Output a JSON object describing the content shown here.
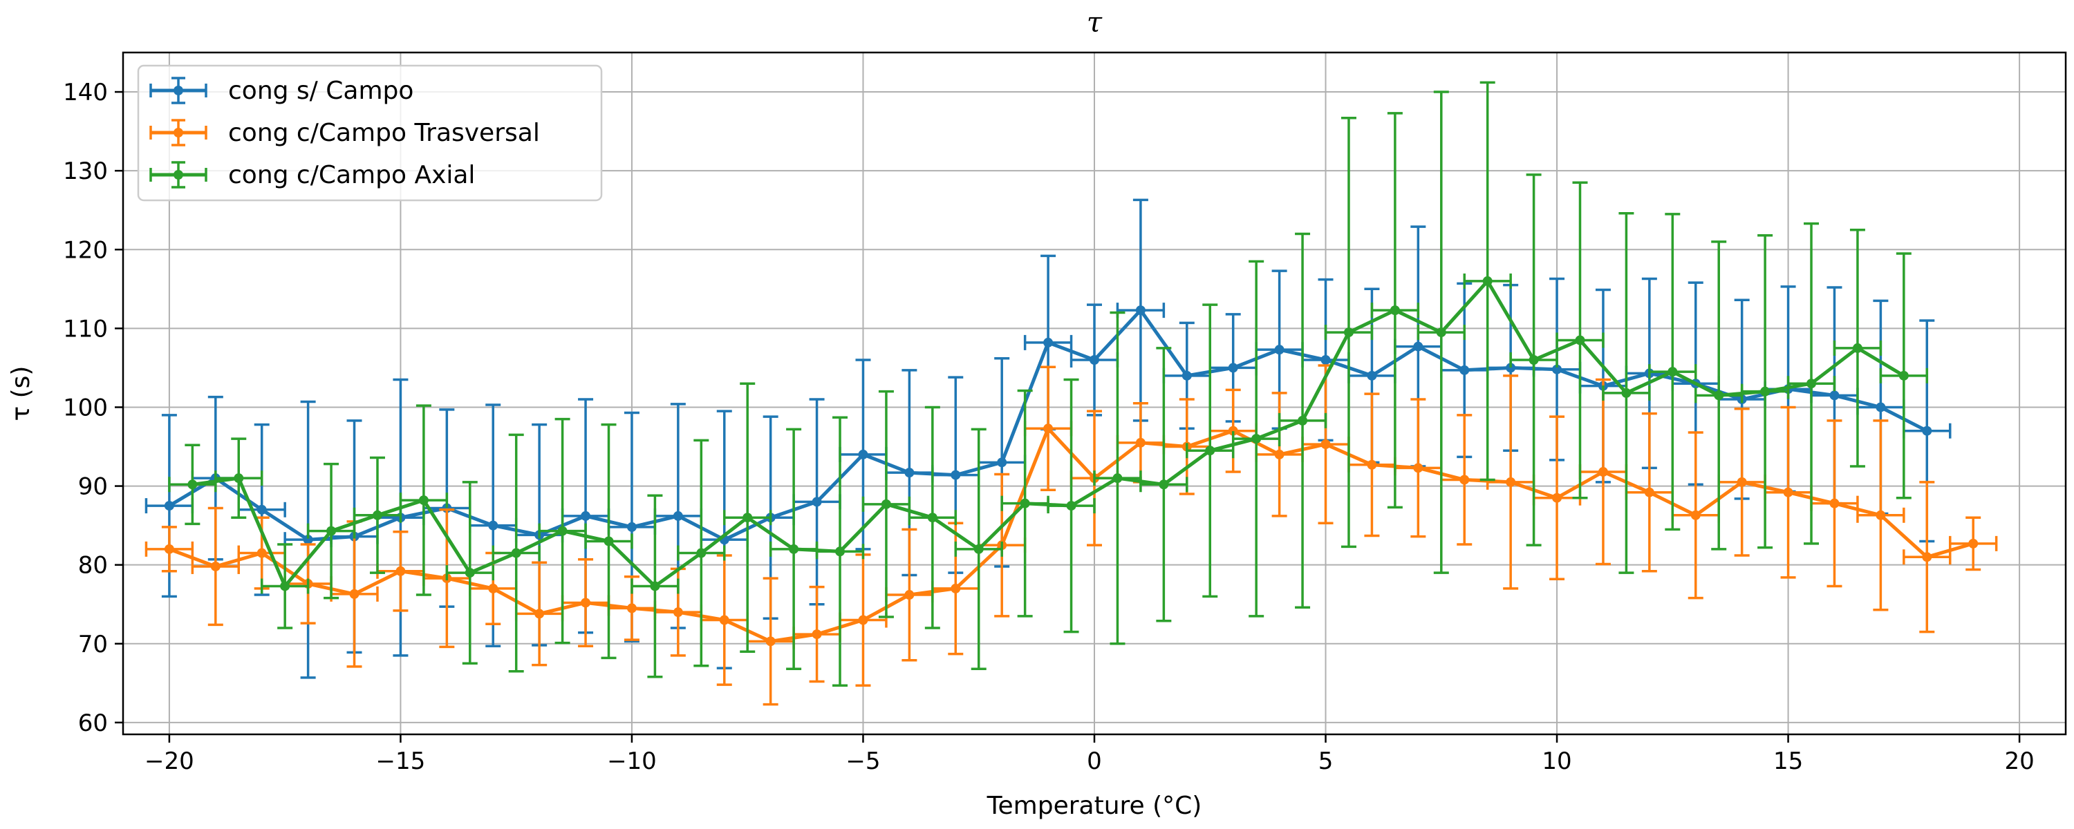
{
  "chart_data": {
    "type": "line",
    "title": "τ",
    "xlabel": "Temperature (°C)",
    "ylabel": "τ (s)",
    "xlim": [
      -21,
      21
    ],
    "ylim": [
      58.5,
      145
    ],
    "xticks": [
      -20,
      -15,
      -10,
      -5,
      0,
      5,
      10,
      15,
      20
    ],
    "xtick_labels": [
      "−20",
      "−15",
      "−10",
      "−5",
      "0",
      "5",
      "10",
      "15",
      "20"
    ],
    "yticks": [
      60,
      70,
      80,
      90,
      100,
      110,
      120,
      130,
      140
    ],
    "ytick_labels": [
      "60",
      "70",
      "80",
      "90",
      "100",
      "110",
      "120",
      "130",
      "140"
    ],
    "grid": true,
    "legend_position": "top-left",
    "series": [
      {
        "name": "cong s/ Campo",
        "color": "#1f77b4",
        "points": [
          {
            "x": -20.0,
            "y": 87.5,
            "yerr": 11.5,
            "xerr": 0.5
          },
          {
            "x": -19.0,
            "y": 91.0,
            "yerr": 10.3,
            "xerr": 0.5
          },
          {
            "x": -18.0,
            "y": 87.0,
            "yerr": 10.8,
            "xerr": 0.5
          },
          {
            "x": -17.0,
            "y": 83.2,
            "yerr": 17.5,
            "xerr": 0.5
          },
          {
            "x": -16.0,
            "y": 83.6,
            "yerr": 14.7,
            "xerr": 0.5
          },
          {
            "x": -15.0,
            "y": 86.0,
            "yerr": 17.5,
            "xerr": 0.5
          },
          {
            "x": -14.0,
            "y": 87.2,
            "yerr": 12.5,
            "xerr": 0.5
          },
          {
            "x": -13.0,
            "y": 85.0,
            "yerr": 15.3,
            "xerr": 0.5
          },
          {
            "x": -12.0,
            "y": 83.8,
            "yerr": 14.0,
            "xerr": 0.5
          },
          {
            "x": -11.0,
            "y": 86.2,
            "yerr": 14.8,
            "xerr": 0.5
          },
          {
            "x": -10.0,
            "y": 84.8,
            "yerr": 14.5,
            "xerr": 0.5
          },
          {
            "x": -9.0,
            "y": 86.2,
            "yerr": 14.2,
            "xerr": 0.5
          },
          {
            "x": -8.0,
            "y": 83.2,
            "yerr": 16.3,
            "xerr": 0.5
          },
          {
            "x": -7.0,
            "y": 86.0,
            "yerr": 12.8,
            "xerr": 0.5
          },
          {
            "x": -6.0,
            "y": 88.0,
            "yerr": 13.0,
            "xerr": 0.5
          },
          {
            "x": -5.0,
            "y": 94.0,
            "yerr": 12.0,
            "xerr": 0.5
          },
          {
            "x": -4.0,
            "y": 91.7,
            "yerr": 13.0,
            "xerr": 0.5
          },
          {
            "x": -3.0,
            "y": 91.4,
            "yerr": 12.4,
            "xerr": 0.5
          },
          {
            "x": -2.0,
            "y": 93.0,
            "yerr": 13.2,
            "xerr": 0.5
          },
          {
            "x": -1.0,
            "y": 108.2,
            "yerr": 11.0,
            "xerr": 0.5
          },
          {
            "x": 0.0,
            "y": 106.0,
            "yerr": 7.0,
            "xerr": 0.5
          },
          {
            "x": 1.0,
            "y": 112.3,
            "yerr": 14.0,
            "xerr": 0.5
          },
          {
            "x": 2.0,
            "y": 104.0,
            "yerr": 6.7,
            "xerr": 0.5
          },
          {
            "x": 3.0,
            "y": 105.0,
            "yerr": 6.8,
            "xerr": 0.5
          },
          {
            "x": 4.0,
            "y": 107.3,
            "yerr": 10.0,
            "xerr": 0.5
          },
          {
            "x": 5.0,
            "y": 106.0,
            "yerr": 10.2,
            "xerr": 0.5
          },
          {
            "x": 6.0,
            "y": 104.0,
            "yerr": 11.0,
            "xerr": 0.5
          },
          {
            "x": 7.0,
            "y": 107.7,
            "yerr": 15.2,
            "xerr": 0.5
          },
          {
            "x": 8.0,
            "y": 104.7,
            "yerr": 11.0,
            "xerr": 0.5
          },
          {
            "x": 9.0,
            "y": 105.0,
            "yerr": 10.5,
            "xerr": 0.5
          },
          {
            "x": 10.0,
            "y": 104.8,
            "yerr": 11.5,
            "xerr": 0.5
          },
          {
            "x": 11.0,
            "y": 102.7,
            "yerr": 12.2,
            "xerr": 0.5
          },
          {
            "x": 12.0,
            "y": 104.3,
            "yerr": 12.0,
            "xerr": 0.5
          },
          {
            "x": 13.0,
            "y": 103.0,
            "yerr": 12.8,
            "xerr": 0.5
          },
          {
            "x": 14.0,
            "y": 101.0,
            "yerr": 12.6,
            "xerr": 0.5
          },
          {
            "x": 15.0,
            "y": 102.3,
            "yerr": 13.0,
            "xerr": 0.5
          },
          {
            "x": 16.0,
            "y": 101.5,
            "yerr": 13.7,
            "xerr": 0.5
          },
          {
            "x": 17.0,
            "y": 100.0,
            "yerr": 13.5,
            "xerr": 0.5
          },
          {
            "x": 18.0,
            "y": 97.0,
            "yerr": 14.0,
            "xerr": 0.5
          }
        ]
      },
      {
        "name": "cong c/Campo Trasversal",
        "color": "#ff7f0e",
        "points": [
          {
            "x": -20.0,
            "y": 82.0,
            "yerr": 2.8,
            "xerr": 0.5
          },
          {
            "x": -19.0,
            "y": 79.8,
            "yerr": 7.4,
            "xerr": 0.5
          },
          {
            "x": -18.0,
            "y": 81.5,
            "yerr": 4.5,
            "xerr": 0.5
          },
          {
            "x": -17.0,
            "y": 77.6,
            "yerr": 5.0,
            "xerr": 0.5
          },
          {
            "x": -16.0,
            "y": 76.3,
            "yerr": 9.2,
            "xerr": 0.5
          },
          {
            "x": -15.0,
            "y": 79.2,
            "yerr": 5.0,
            "xerr": 0.5
          },
          {
            "x": -14.0,
            "y": 78.3,
            "yerr": 8.7,
            "xerr": 0.5
          },
          {
            "x": -13.0,
            "y": 77.0,
            "yerr": 4.5,
            "xerr": 0.5
          },
          {
            "x": -12.0,
            "y": 73.8,
            "yerr": 6.5,
            "xerr": 0.5
          },
          {
            "x": -11.0,
            "y": 75.2,
            "yerr": 5.5,
            "xerr": 0.5
          },
          {
            "x": -10.0,
            "y": 74.5,
            "yerr": 4.0,
            "xerr": 0.5
          },
          {
            "x": -9.0,
            "y": 74.0,
            "yerr": 5.5,
            "xerr": 0.5
          },
          {
            "x": -8.0,
            "y": 73.0,
            "yerr": 8.2,
            "xerr": 0.5
          },
          {
            "x": -7.0,
            "y": 70.3,
            "yerr": 8.0,
            "xerr": 0.5
          },
          {
            "x": -6.0,
            "y": 71.2,
            "yerr": 6.0,
            "xerr": 0.5
          },
          {
            "x": -5.0,
            "y": 73.0,
            "yerr": 8.3,
            "xerr": 0.5
          },
          {
            "x": -4.0,
            "y": 76.2,
            "yerr": 8.3,
            "xerr": 0.5
          },
          {
            "x": -3.0,
            "y": 77.0,
            "yerr": 8.3,
            "xerr": 0.5
          },
          {
            "x": -2.0,
            "y": 82.5,
            "yerr": 9.0,
            "xerr": 0.5
          },
          {
            "x": -1.0,
            "y": 97.3,
            "yerr": 7.8,
            "xerr": 0.5
          },
          {
            "x": 0.0,
            "y": 91.0,
            "yerr": 8.5,
            "xerr": 0.5
          },
          {
            "x": 1.0,
            "y": 95.5,
            "yerr": 5.0,
            "xerr": 0.5
          },
          {
            "x": 2.0,
            "y": 95.0,
            "yerr": 6.0,
            "xerr": 0.5
          },
          {
            "x": 3.0,
            "y": 97.0,
            "yerr": 5.2,
            "xerr": 0.5
          },
          {
            "x": 4.0,
            "y": 94.0,
            "yerr": 7.8,
            "xerr": 0.5
          },
          {
            "x": 5.0,
            "y": 95.3,
            "yerr": 10.0,
            "xerr": 0.5
          },
          {
            "x": 6.0,
            "y": 92.7,
            "yerr": 9.0,
            "xerr": 0.5
          },
          {
            "x": 7.0,
            "y": 92.3,
            "yerr": 8.7,
            "xerr": 0.5
          },
          {
            "x": 8.0,
            "y": 90.8,
            "yerr": 8.2,
            "xerr": 0.5
          },
          {
            "x": 9.0,
            "y": 90.5,
            "yerr": 13.5,
            "xerr": 0.5
          },
          {
            "x": 10.0,
            "y": 88.5,
            "yerr": 10.3,
            "xerr": 0.5
          },
          {
            "x": 11.0,
            "y": 91.8,
            "yerr": 11.7,
            "xerr": 0.5
          },
          {
            "x": 12.0,
            "y": 89.2,
            "yerr": 10.0,
            "xerr": 0.5
          },
          {
            "x": 13.0,
            "y": 86.3,
            "yerr": 10.5,
            "xerr": 0.5
          },
          {
            "x": 14.0,
            "y": 90.5,
            "yerr": 9.3,
            "xerr": 0.5
          },
          {
            "x": 15.0,
            "y": 89.2,
            "yerr": 10.8,
            "xerr": 0.5
          },
          {
            "x": 16.0,
            "y": 87.8,
            "yerr": 10.5,
            "xerr": 0.5
          },
          {
            "x": 17.0,
            "y": 86.3,
            "yerr": 12.0,
            "xerr": 0.5
          },
          {
            "x": 18.0,
            "y": 81.0,
            "yerr": 9.5,
            "xerr": 0.5
          },
          {
            "x": 19.0,
            "y": 82.7,
            "yerr": 3.3,
            "xerr": 0.5
          }
        ]
      },
      {
        "name": "cong c/Campo Axial",
        "color": "#2ca02c",
        "points": [
          {
            "x": -19.5,
            "y": 90.2,
            "yerr": 5.0,
            "xerr": 0.5
          },
          {
            "x": -18.5,
            "y": 91.0,
            "yerr": 5.0,
            "xerr": 0.5
          },
          {
            "x": -17.5,
            "y": 77.3,
            "yerr": 5.3,
            "xerr": 0.5
          },
          {
            "x": -16.5,
            "y": 84.3,
            "yerr": 8.5,
            "xerr": 0.5
          },
          {
            "x": -15.5,
            "y": 86.3,
            "yerr": 7.3,
            "xerr": 0.5
          },
          {
            "x": -14.5,
            "y": 88.2,
            "yerr": 12.0,
            "xerr": 0.5
          },
          {
            "x": -13.5,
            "y": 79.0,
            "yerr": 11.5,
            "xerr": 0.5
          },
          {
            "x": -12.5,
            "y": 81.5,
            "yerr": 15.0,
            "xerr": 0.5
          },
          {
            "x": -11.5,
            "y": 84.3,
            "yerr": 14.2,
            "xerr": 0.5
          },
          {
            "x": -10.5,
            "y": 83.0,
            "yerr": 14.8,
            "xerr": 0.5
          },
          {
            "x": -9.5,
            "y": 77.3,
            "yerr": 11.5,
            "xerr": 0.5
          },
          {
            "x": -8.5,
            "y": 81.5,
            "yerr": 14.3,
            "xerr": 0.5
          },
          {
            "x": -7.5,
            "y": 86.0,
            "yerr": 17.0,
            "xerr": 0.5
          },
          {
            "x": -6.5,
            "y": 82.0,
            "yerr": 15.2,
            "xerr": 0.5
          },
          {
            "x": -5.5,
            "y": 81.7,
            "yerr": 17.0,
            "xerr": 0.5
          },
          {
            "x": -4.5,
            "y": 87.7,
            "yerr": 14.3,
            "xerr": 0.5
          },
          {
            "x": -3.5,
            "y": 86.0,
            "yerr": 14.0,
            "xerr": 0.5
          },
          {
            "x": -2.5,
            "y": 82.0,
            "yerr": 15.2,
            "xerr": 0.5
          },
          {
            "x": -1.5,
            "y": 87.8,
            "yerr": 14.3,
            "xerr": 0.5
          },
          {
            "x": -0.5,
            "y": 87.5,
            "yerr": 16.0,
            "xerr": 0.5
          },
          {
            "x": 0.5,
            "y": 91.0,
            "yerr": 21.0,
            "xerr": 0.5
          },
          {
            "x": 1.5,
            "y": 90.2,
            "yerr": 17.3,
            "xerr": 0.5
          },
          {
            "x": 2.5,
            "y": 94.5,
            "yerr": 18.5,
            "xerr": 0.5
          },
          {
            "x": 3.5,
            "y": 96.0,
            "yerr": 22.5,
            "xerr": 0.5
          },
          {
            "x": 4.5,
            "y": 98.3,
            "yerr": 23.7,
            "xerr": 0.5
          },
          {
            "x": 5.5,
            "y": 109.5,
            "yerr": 27.2,
            "xerr": 0.5
          },
          {
            "x": 6.5,
            "y": 112.3,
            "yerr": 25.0,
            "xerr": 0.5
          },
          {
            "x": 7.5,
            "y": 109.5,
            "yerr": 30.5,
            "xerr": 0.5
          },
          {
            "x": 8.5,
            "y": 116.0,
            "yerr": 25.2,
            "xerr": 0.5
          },
          {
            "x": 9.5,
            "y": 106.0,
            "yerr": 23.5,
            "xerr": 0.5
          },
          {
            "x": 10.5,
            "y": 108.5,
            "yerr": 20.0,
            "xerr": 0.5
          },
          {
            "x": 11.5,
            "y": 101.8,
            "yerr": 22.8,
            "xerr": 0.5
          },
          {
            "x": 12.5,
            "y": 104.5,
            "yerr": 20.0,
            "xerr": 0.5
          },
          {
            "x": 13.5,
            "y": 101.5,
            "yerr": 19.5,
            "xerr": 0.5
          },
          {
            "x": 14.5,
            "y": 102.0,
            "yerr": 19.8,
            "xerr": 0.5
          },
          {
            "x": 15.5,
            "y": 103.0,
            "yerr": 20.3,
            "xerr": 0.5
          },
          {
            "x": 16.5,
            "y": 107.5,
            "yerr": 15.0,
            "xerr": 0.5
          },
          {
            "x": 17.5,
            "y": 104.0,
            "yerr": 15.5,
            "xerr": 0.5
          }
        ]
      }
    ]
  }
}
